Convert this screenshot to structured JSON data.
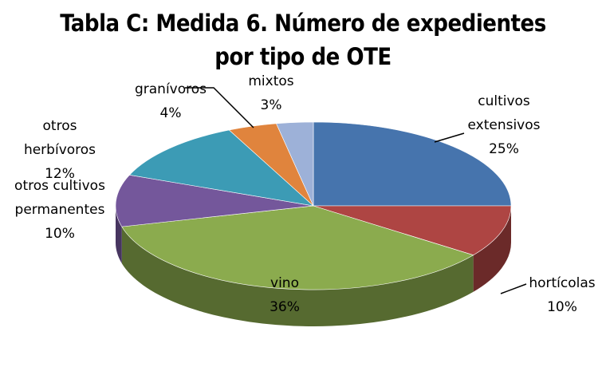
{
  "chart_data": {
    "type": "pie3d",
    "title": "Tabla C: Medida 6. Número de expedientes por tipo de OTE",
    "categories": [
      "cultivos extensivos",
      "hortícolas",
      "vino",
      "otros cultivos permanentes",
      "otros herbívoros",
      "granívoros",
      "mixtos"
    ],
    "values": [
      25,
      10,
      36,
      10,
      12,
      4,
      3
    ],
    "value_labels": [
      "25%",
      "10%",
      "36%",
      "10%",
      "12%",
      "4%",
      "3%"
    ],
    "colors": [
      "#4674ad",
      "#ae4543",
      "#8bab4e",
      "#74579b",
      "#3c9bb5",
      "#e0843d",
      "#9db1d8"
    ]
  }
}
